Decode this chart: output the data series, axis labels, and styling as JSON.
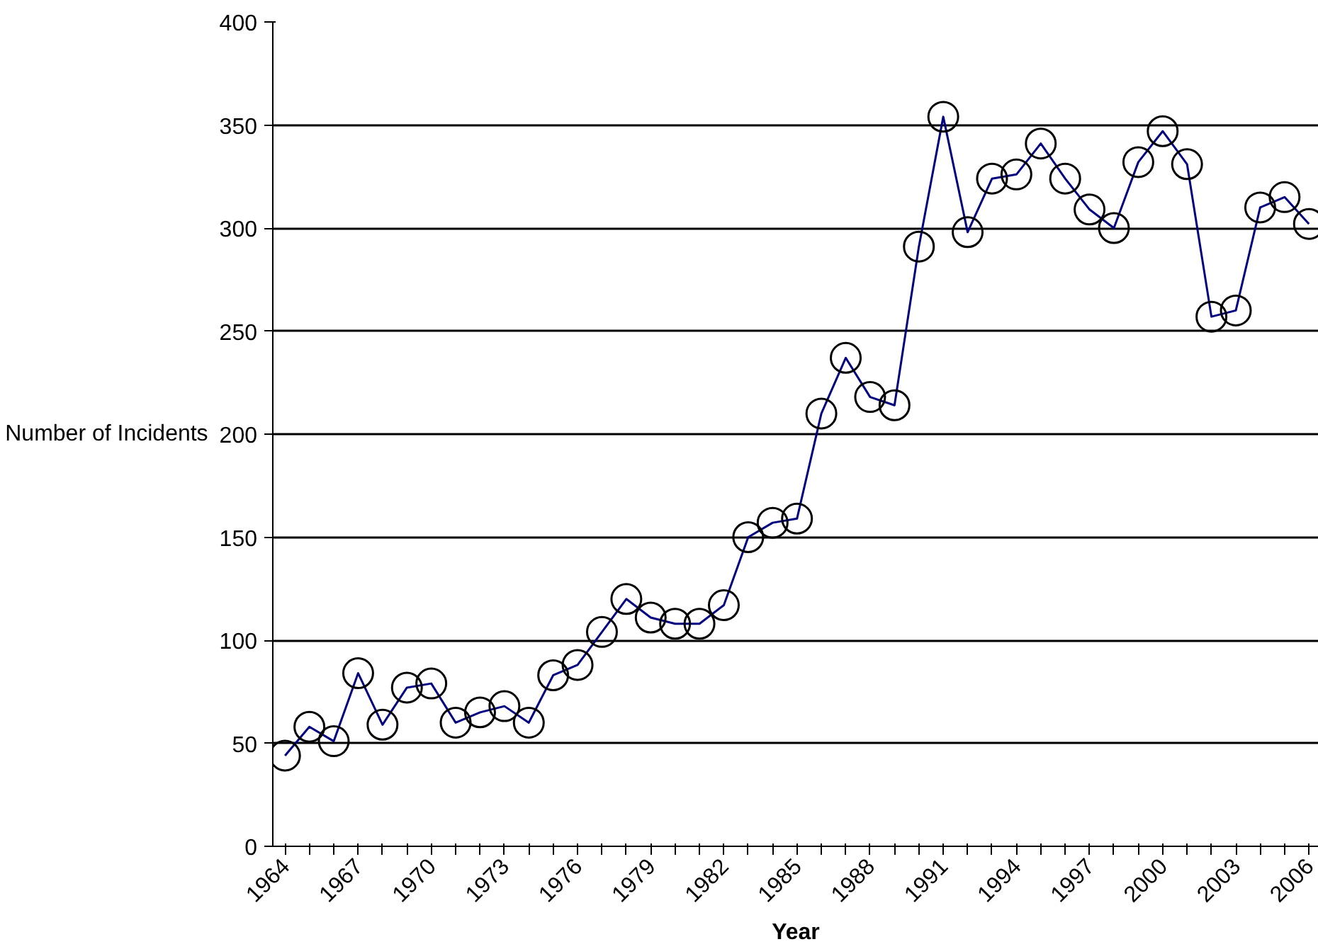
{
  "chart_data": {
    "type": "line",
    "xlabel": "Year",
    "ylabel": "Number of Incidents",
    "categories": [
      "1964",
      null,
      null,
      "1967",
      null,
      null,
      "1970",
      null,
      null,
      "1973",
      null,
      null,
      "1976",
      null,
      null,
      "1979",
      null,
      null,
      "1982",
      null,
      null,
      "1985",
      null,
      null,
      "1988",
      null,
      null,
      "1991",
      null,
      null,
      "1994",
      null,
      null,
      "1997",
      null,
      null,
      "2000",
      null,
      null,
      "2003",
      null,
      null,
      "2006"
    ],
    "series": [
      {
        "color": "#000080",
        "values": [
          44,
          58,
          51,
          84,
          59,
          77,
          79,
          60,
          65,
          68,
          60,
          83,
          88,
          104,
          120,
          111,
          108,
          108,
          117,
          150,
          157,
          159,
          210,
          237,
          218,
          214,
          291,
          354,
          298,
          324,
          326,
          341,
          324,
          309,
          300,
          332,
          347,
          331,
          257,
          260,
          310,
          315,
          302
        ]
      }
    ],
    "ylim": [
      0,
      400
    ],
    "yticks": [
      0,
      50,
      100,
      150,
      200,
      250,
      300,
      350,
      400
    ],
    "grid": "y",
    "marker": "circle",
    "line_style": "solid"
  }
}
